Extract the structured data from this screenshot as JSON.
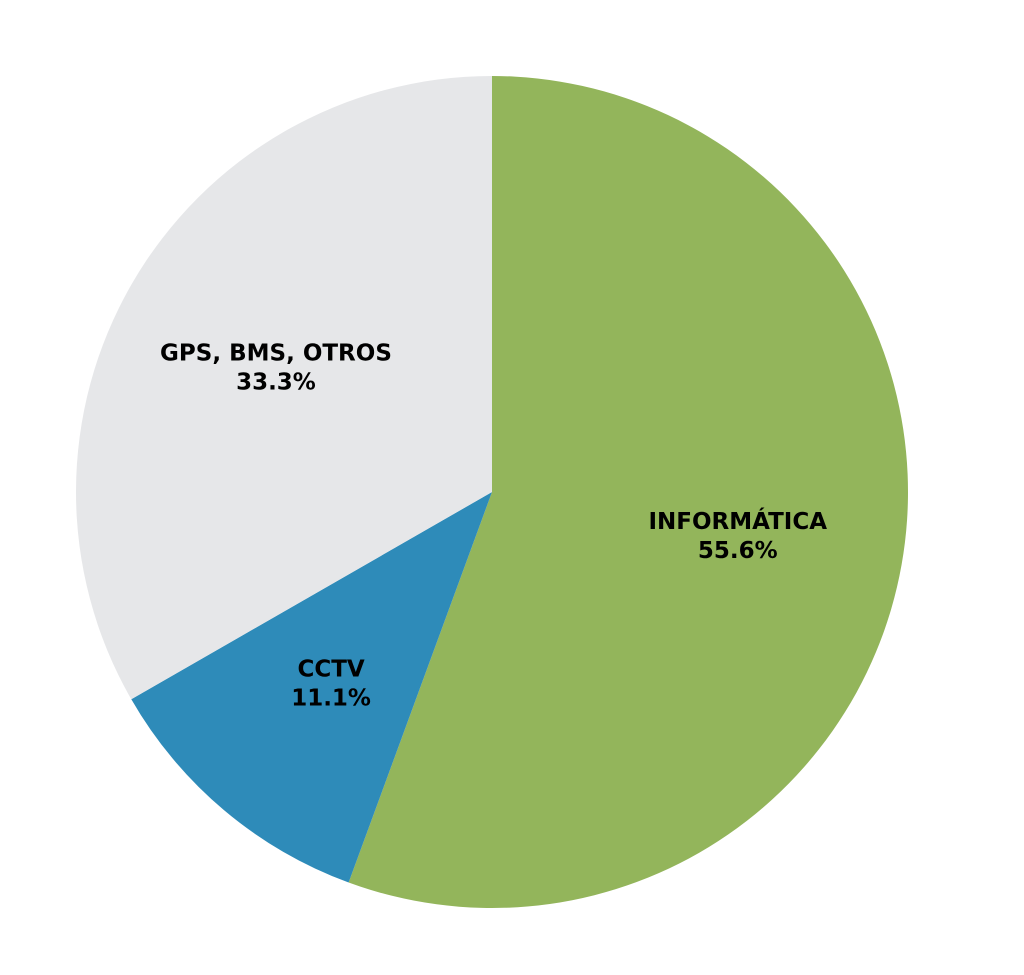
{
  "chart_data": {
    "type": "pie",
    "title": "",
    "start_angle_deg": 90,
    "direction": "clockwise",
    "slices": [
      {
        "name": "INFORMÁTICA",
        "value": 55.6,
        "pct_label": "55.6%",
        "color": "#93b55b"
      },
      {
        "name": "CCTV",
        "value": 11.1,
        "pct_label": "11.1%",
        "color": "#2e8bb9"
      },
      {
        "name": "GPS, BMS, OTROS",
        "value": 33.3,
        "pct_label": "33.3%",
        "color": "#e6e7e9"
      }
    ]
  }
}
